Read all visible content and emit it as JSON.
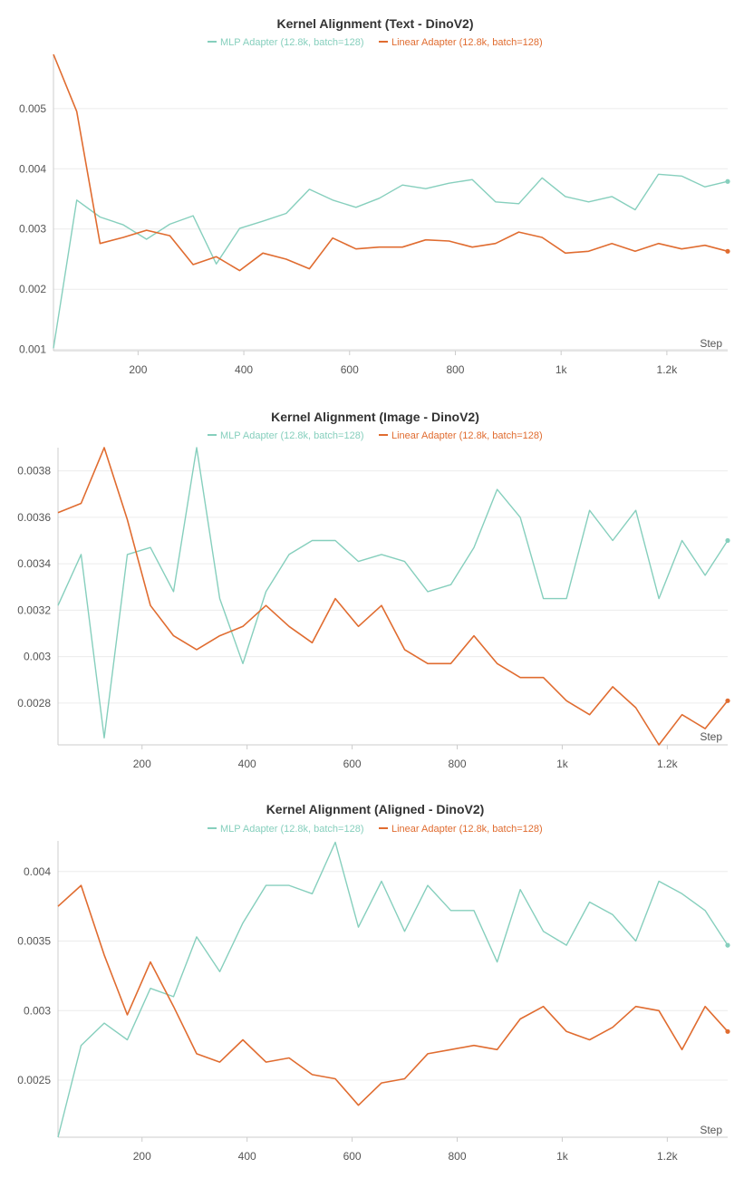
{
  "charts": [
    {
      "title": "Kernel Alignment (Text - DinoV2)",
      "x_label": "Step",
      "x_ticks": [
        {
          "value": 200,
          "label": "200"
        },
        {
          "value": 400,
          "label": "400"
        },
        {
          "value": 600,
          "label": "600"
        },
        {
          "value": 800,
          "label": "800"
        },
        {
          "value": 1000,
          "label": "1k"
        },
        {
          "value": 1200,
          "label": "1.2k"
        }
      ],
      "y_ticks": [
        {
          "value": 0.001,
          "label": "0.001"
        },
        {
          "value": 0.002,
          "label": "0.002"
        },
        {
          "value": 0.003,
          "label": "0.003"
        },
        {
          "value": 0.004,
          "label": "0.004"
        },
        {
          "value": 0.005,
          "label": "0.005"
        }
      ],
      "series": [
        {
          "name": "MLP Adapter (12.8k, batch=128)",
          "color": "#86cfbd"
        },
        {
          "name": "Linear Adapter (12.8k, batch=128)",
          "color": "#e06c30"
        }
      ]
    },
    {
      "title": "Kernel Alignment (Image - DinoV2)",
      "x_label": "Step",
      "x_ticks": [
        {
          "value": 200,
          "label": "200"
        },
        {
          "value": 400,
          "label": "400"
        },
        {
          "value": 600,
          "label": "600"
        },
        {
          "value": 800,
          "label": "800"
        },
        {
          "value": 1000,
          "label": "1k"
        },
        {
          "value": 1200,
          "label": "1.2k"
        }
      ],
      "y_ticks": [
        {
          "value": 0.0028,
          "label": "0.0028"
        },
        {
          "value": 0.003,
          "label": "0.003"
        },
        {
          "value": 0.0032,
          "label": "0.0032"
        },
        {
          "value": 0.0034,
          "label": "0.0034"
        },
        {
          "value": 0.0036,
          "label": "0.0036"
        },
        {
          "value": 0.0038,
          "label": "0.0038"
        }
      ],
      "series": [
        {
          "name": "MLP Adapter (12.8k, batch=128)",
          "color": "#86cfbd"
        },
        {
          "name": "Linear Adapter (12.8k, batch=128)",
          "color": "#e06c30"
        }
      ]
    },
    {
      "title": "Kernel Alignment (Aligned - DinoV2)",
      "x_label": "Step",
      "x_ticks": [
        {
          "value": 200,
          "label": "200"
        },
        {
          "value": 400,
          "label": "400"
        },
        {
          "value": 600,
          "label": "600"
        },
        {
          "value": 800,
          "label": "800"
        },
        {
          "value": 1000,
          "label": "1k"
        },
        {
          "value": 1200,
          "label": "1.2k"
        }
      ],
      "y_ticks": [
        {
          "value": 0.0025,
          "label": "0.0025"
        },
        {
          "value": 0.003,
          "label": "0.003"
        },
        {
          "value": 0.0035,
          "label": "0.0035"
        },
        {
          "value": 0.004,
          "label": "0.004"
        }
      ],
      "series": [
        {
          "name": "MLP Adapter (12.8k, batch=128)",
          "color": "#86cfbd"
        },
        {
          "name": "Linear Adapter (12.8k, batch=128)",
          "color": "#e06c30"
        }
      ]
    }
  ],
  "chart_data": [
    {
      "type": "line",
      "title": "Kernel Alignment (Text - DinoV2)",
      "xlabel": "Step",
      "ylabel": "",
      "xlim": [
        40,
        1315
      ],
      "ylim": [
        0.00098,
        0.0059
      ],
      "grid": true,
      "legend": "top-center",
      "x": [
        40,
        84,
        128,
        172,
        216,
        260,
        304,
        348,
        392,
        436,
        480,
        524,
        568,
        612,
        656,
        700,
        744,
        788,
        832,
        876,
        920,
        964,
        1008,
        1052,
        1096,
        1140,
        1184,
        1228,
        1272,
        1315
      ],
      "series": [
        {
          "name": "MLP Adapter (12.8k, batch=128)",
          "color": "#86cfbd",
          "values": [
            0.00102,
            0.00348,
            0.0032,
            0.00307,
            0.00283,
            0.00308,
            0.00322,
            0.00242,
            0.00301,
            0.00313,
            0.00326,
            0.00366,
            0.00348,
            0.00336,
            0.00351,
            0.00373,
            0.00367,
            0.00376,
            0.00382,
            0.00345,
            0.00342,
            0.00385,
            0.00354,
            0.00345,
            0.00354,
            0.00332,
            0.00391,
            0.00388,
            0.0037,
            0.00379
          ]
        },
        {
          "name": "Linear Adapter (12.8k, batch=128)",
          "color": "#e06c30",
          "values": [
            0.0059,
            0.00495,
            0.00276,
            0.00286,
            0.00298,
            0.00289,
            0.00241,
            0.00254,
            0.00231,
            0.0026,
            0.0025,
            0.00234,
            0.00285,
            0.00267,
            0.0027,
            0.0027,
            0.00282,
            0.0028,
            0.0027,
            0.00276,
            0.00295,
            0.00286,
            0.0026,
            0.00263,
            0.00276,
            0.00263,
            0.00276,
            0.00267,
            0.00273,
            0.00263
          ]
        }
      ]
    },
    {
      "type": "line",
      "title": "Kernel Alignment (Image - DinoV2)",
      "xlabel": "Step",
      "ylabel": "",
      "xlim": [
        40,
        1315
      ],
      "ylim": [
        0.00262,
        0.0039
      ],
      "grid": true,
      "legend": "top-center",
      "x": [
        40,
        84,
        128,
        172,
        216,
        260,
        304,
        348,
        392,
        436,
        480,
        524,
        568,
        612,
        656,
        700,
        744,
        788,
        832,
        876,
        920,
        964,
        1008,
        1052,
        1096,
        1140,
        1184,
        1228,
        1272,
        1315
      ],
      "series": [
        {
          "name": "MLP Adapter (12.8k, batch=128)",
          "color": "#86cfbd",
          "values": [
            0.00322,
            0.00344,
            0.00265,
            0.00344,
            0.00347,
            0.00328,
            0.0039,
            0.00325,
            0.00297,
            0.00328,
            0.00344,
            0.0035,
            0.0035,
            0.00341,
            0.00344,
            0.00341,
            0.00328,
            0.00331,
            0.00347,
            0.00372,
            0.0036,
            0.00325,
            0.00325,
            0.00363,
            0.0035,
            0.00363,
            0.00325,
            0.0035,
            0.00335,
            0.0035
          ]
        },
        {
          "name": "Linear Adapter (12.8k, batch=128)",
          "color": "#e06c30",
          "values": [
            0.00362,
            0.00366,
            0.0039,
            0.00359,
            0.00322,
            0.00309,
            0.00303,
            0.00309,
            0.00313,
            0.00322,
            0.00313,
            0.00306,
            0.00325,
            0.00313,
            0.00322,
            0.00303,
            0.00297,
            0.00297,
            0.00309,
            0.00297,
            0.00291,
            0.00291,
            0.00281,
            0.00275,
            0.00287,
            0.00278,
            0.00262,
            0.00275,
            0.00269,
            0.00281
          ]
        }
      ]
    },
    {
      "type": "line",
      "title": "Kernel Alignment (Aligned - DinoV2)",
      "xlabel": "Step",
      "ylabel": "",
      "xlim": [
        40,
        1315
      ],
      "ylim": [
        0.00209,
        0.00422
      ],
      "grid": true,
      "legend": "top-center",
      "x": [
        40,
        84,
        128,
        172,
        216,
        260,
        304,
        348,
        392,
        436,
        480,
        524,
        568,
        612,
        656,
        700,
        744,
        788,
        832,
        876,
        920,
        964,
        1008,
        1052,
        1096,
        1140,
        1184,
        1228,
        1272,
        1315
      ],
      "series": [
        {
          "name": "MLP Adapter (12.8k, batch=128)",
          "color": "#86cfbd",
          "values": [
            0.00209,
            0.00275,
            0.00291,
            0.00279,
            0.00316,
            0.0031,
            0.00353,
            0.00328,
            0.00363,
            0.0039,
            0.0039,
            0.00384,
            0.00421,
            0.0036,
            0.00393,
            0.00357,
            0.0039,
            0.00372,
            0.00372,
            0.00335,
            0.00387,
            0.00357,
            0.00347,
            0.00378,
            0.00369,
            0.0035,
            0.00393,
            0.00384,
            0.00372,
            0.00347
          ]
        },
        {
          "name": "Linear Adapter (12.8k, batch=128)",
          "color": "#e06c30",
          "values": [
            0.00375,
            0.0039,
            0.0034,
            0.00297,
            0.00335,
            0.00303,
            0.00269,
            0.00263,
            0.00279,
            0.00263,
            0.00266,
            0.00254,
            0.00251,
            0.00232,
            0.00248,
            0.00251,
            0.00269,
            0.00272,
            0.00275,
            0.00272,
            0.00294,
            0.00303,
            0.00285,
            0.00279,
            0.00288,
            0.00303,
            0.003,
            0.00272,
            0.00303,
            0.00285
          ]
        }
      ]
    }
  ]
}
